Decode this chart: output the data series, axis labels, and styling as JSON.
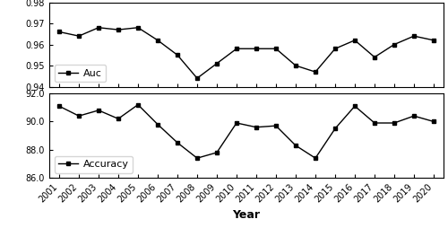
{
  "years": [
    2001,
    2002,
    2003,
    2004,
    2005,
    2006,
    2007,
    2008,
    2009,
    2010,
    2011,
    2012,
    2013,
    2014,
    2015,
    2016,
    2017,
    2018,
    2019,
    2020
  ],
  "auc": [
    0.966,
    0.964,
    0.968,
    0.967,
    0.968,
    0.962,
    0.955,
    0.944,
    0.951,
    0.958,
    0.958,
    0.958,
    0.95,
    0.947,
    0.958,
    0.962,
    0.954,
    0.96,
    0.964,
    0.962
  ],
  "accuracy": [
    91.1,
    90.4,
    90.8,
    90.2,
    91.2,
    89.8,
    88.5,
    87.4,
    87.8,
    89.9,
    89.6,
    89.7,
    88.3,
    87.4,
    89.5,
    91.1,
    89.9,
    89.9,
    90.4,
    90.0
  ],
  "auc_ylim": [
    0.94,
    0.98
  ],
  "auc_yticks": [
    0.94,
    0.95,
    0.96,
    0.97,
    0.98
  ],
  "accuracy_ylim": [
    86.0,
    92.0
  ],
  "accuracy_yticks": [
    86.0,
    88.0,
    90.0,
    92.0
  ],
  "line_color": "#000000",
  "marker": "s",
  "markersize": 3,
  "linewidth": 1.0,
  "auc_legend": "Auc",
  "accuracy_legend": "Accuracy",
  "xlabel": "Year",
  "xlabel_fontsize": 9,
  "tick_fontsize": 7,
  "legend_fontsize": 8,
  "background_color": "#ffffff"
}
